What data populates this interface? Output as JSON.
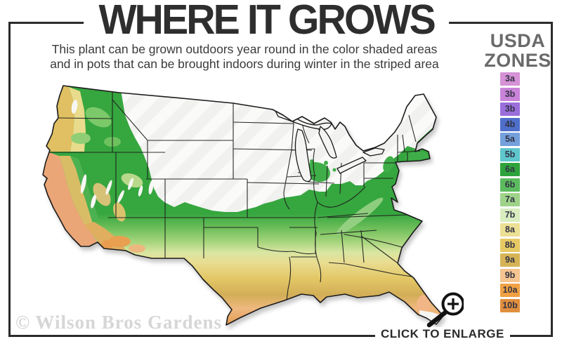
{
  "header": {
    "title": "WHERE IT GROWS",
    "subtitle_line1": "This plant can be grown outdoors year round in the color shaded areas",
    "subtitle_line2": "and in pots that can be brought indoors during winter in the striped area"
  },
  "legend": {
    "title_line1": "USDA",
    "title_line2": "ZONES",
    "zones": [
      {
        "label": "3a",
        "color": "#d692d6"
      },
      {
        "label": "3b",
        "color": "#c983d9"
      },
      {
        "label": "3b",
        "color": "#9a6edb"
      },
      {
        "label": "4b",
        "color": "#4e6fca"
      },
      {
        "label": "5a",
        "color": "#74a0dc"
      },
      {
        "label": "5b",
        "color": "#5ec6cc"
      },
      {
        "label": "6a",
        "color": "#2ea33c"
      },
      {
        "label": "6b",
        "color": "#5cbb5e"
      },
      {
        "label": "7a",
        "color": "#9ed389"
      },
      {
        "label": "7b",
        "color": "#d9edc0"
      },
      {
        "label": "8a",
        "color": "#ece095"
      },
      {
        "label": "8b",
        "color": "#e7c964"
      },
      {
        "label": "9a",
        "color": "#d6b456"
      },
      {
        "label": "9b",
        "color": "#f5c48f"
      },
      {
        "label": "10a",
        "color": "#f0a143"
      },
      {
        "label": "10b",
        "color": "#e18f3e"
      }
    ]
  },
  "map": {
    "striped_area_meaning": "striped area",
    "colors": {
      "zone_green": "#36a63f",
      "zone_light_green": "#9ed389",
      "zone_pale_yellow": "#ece095",
      "zone_gold": "#e3c766",
      "zone_tan": "#d2ae57",
      "zone_peach": "#eeb87e",
      "zone_orange": "#e2964a",
      "unshaded_white": "#f2f2f0",
      "border_line": "#1b1b1b"
    }
  },
  "footer": {
    "watermark": "© Wilson Bros Gardens",
    "enlarge_label": "CLICK TO ENLARGE"
  },
  "frame_color": "#2b2b2b"
}
